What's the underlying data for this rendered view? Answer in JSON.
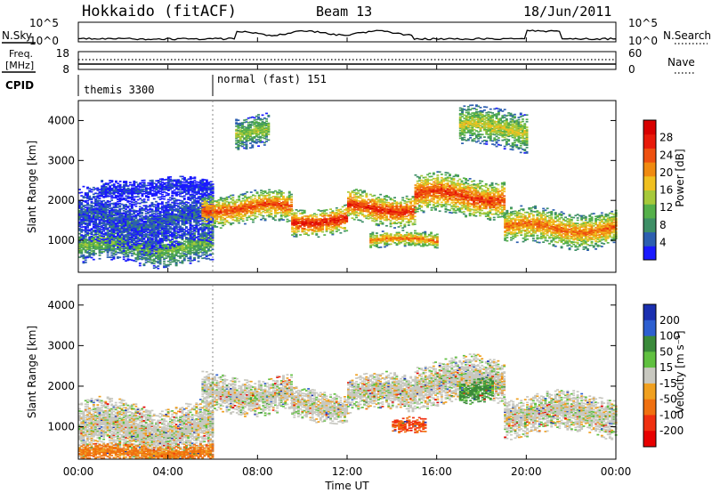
{
  "header": {
    "station": "Hokkaido (fitACF)",
    "beam": "Beam 13",
    "date": "18/Jun/2011"
  },
  "panels": {
    "nsky": {
      "label": "N.Sky",
      "right_label": "N.Search",
      "left_ticks": [
        "10^5",
        "10^0"
      ],
      "right_ticks": [
        "10^5",
        "10^0"
      ]
    },
    "freq": {
      "label1": "Freq.",
      "label2": "[MHz]",
      "right_label": "Nave",
      "left_ticks": [
        "18",
        "8"
      ],
      "right_ticks": [
        "60",
        "0"
      ]
    },
    "cpid": {
      "label": "CPID",
      "segments": [
        {
          "text": "themis 3300",
          "start_hour": 0
        },
        {
          "text": "normal (fast) 151",
          "start_hour": 6
        }
      ]
    }
  },
  "colors": {
    "axis": "#000000",
    "dotted": "#000000"
  },
  "chart_data": [
    {
      "type": "heatmap",
      "name": "power",
      "ylabel": "Slant Range [km]",
      "xlim": [
        0,
        24
      ],
      "ylim": [
        200,
        4500
      ],
      "yticks": [
        "1000",
        "2000",
        "3000",
        "4000"
      ],
      "colorbar": {
        "label": "Power [dB]",
        "ticks": [
          "4",
          "8",
          "12",
          "16",
          "20",
          "24",
          "28"
        ],
        "colors": [
          "#1a1aff",
          "#2d5fb0",
          "#3e8f66",
          "#55b04a",
          "#a6c93a",
          "#f0c020",
          "#f08a10",
          "#ee5010",
          "#e81a0a",
          "#d80000"
        ]
      },
      "bands": [
        {
          "h0": 0,
          "h1": 6,
          "center": 850,
          "width": 450,
          "level": 12
        },
        {
          "h0": 0,
          "h1": 6,
          "center": 1500,
          "width": 700,
          "level": 5
        },
        {
          "h0": 1,
          "h1": 6,
          "center": 2300,
          "width": 250,
          "level": 3
        },
        {
          "h0": 5.5,
          "h1": 9.5,
          "center": 1800,
          "width": 400,
          "level": 24
        },
        {
          "h0": 9.5,
          "h1": 12,
          "center": 1500,
          "width": 350,
          "level": 27
        },
        {
          "h0": 12,
          "h1": 15,
          "center": 1800,
          "width": 400,
          "level": 26
        },
        {
          "h0": 15,
          "h1": 19,
          "center": 2100,
          "width": 500,
          "level": 25
        },
        {
          "h0": 19,
          "h1": 24,
          "center": 1300,
          "width": 450,
          "level": 22
        },
        {
          "h0": 13,
          "h1": 16,
          "center": 1000,
          "width": 200,
          "level": 22
        },
        {
          "h0": 7,
          "h1": 8.5,
          "center": 3700,
          "width": 400,
          "level": 14
        },
        {
          "h0": 17,
          "h1": 20,
          "center": 3800,
          "width": 500,
          "level": 16
        }
      ]
    },
    {
      "type": "heatmap",
      "name": "velocity",
      "ylabel": "Slant Range [km]",
      "xlabel": "Time UT",
      "xlim": [
        0,
        24
      ],
      "ylim": [
        200,
        4500
      ],
      "xticks": [
        "00:00",
        "04:00",
        "08:00",
        "12:00",
        "16:00",
        "20:00",
        "00:00"
      ],
      "yticks": [
        "1000",
        "2000",
        "3000",
        "4000"
      ],
      "colorbar": {
        "label": "Velocity [m s⁻¹]",
        "ticks": [
          "200",
          "100",
          "50",
          "15",
          "-15",
          "-50",
          "-100",
          "-200"
        ],
        "colors": [
          "#1a2fb0",
          "#2d5fd0",
          "#3a8a3a",
          "#60c040",
          "#c8c8c0",
          "#f0a020",
          "#f07010",
          "#f03010",
          "#e80000"
        ]
      },
      "bands": [
        {
          "h0": 0,
          "h1": 6,
          "center": 900,
          "width": 700,
          "level": 0
        },
        {
          "h0": 5.5,
          "h1": 9.5,
          "center": 1800,
          "width": 450,
          "level": 0
        },
        {
          "h0": 9.5,
          "h1": 12,
          "center": 1500,
          "width": 400,
          "level": 0
        },
        {
          "h0": 12,
          "h1": 15,
          "center": 1800,
          "width": 450,
          "level": 0
        },
        {
          "h0": 15,
          "h1": 19,
          "center": 2100,
          "width": 550,
          "level": 0
        },
        {
          "h0": 19,
          "h1": 24,
          "center": 1300,
          "width": 500,
          "level": 0
        },
        {
          "h0": 0,
          "h1": 6,
          "center": 350,
          "width": 200,
          "level": -40
        },
        {
          "h0": 14,
          "h1": 15.5,
          "center": 1000,
          "width": 200,
          "level": -80
        },
        {
          "h0": 17,
          "h1": 18.5,
          "center": 1900,
          "width": 300,
          "level": 40
        }
      ]
    }
  ],
  "x_axis": {
    "label": "Time UT",
    "ticks": [
      "00:00",
      "04:00",
      "08:00",
      "12:00",
      "16:00",
      "20:00",
      "00:00"
    ]
  }
}
